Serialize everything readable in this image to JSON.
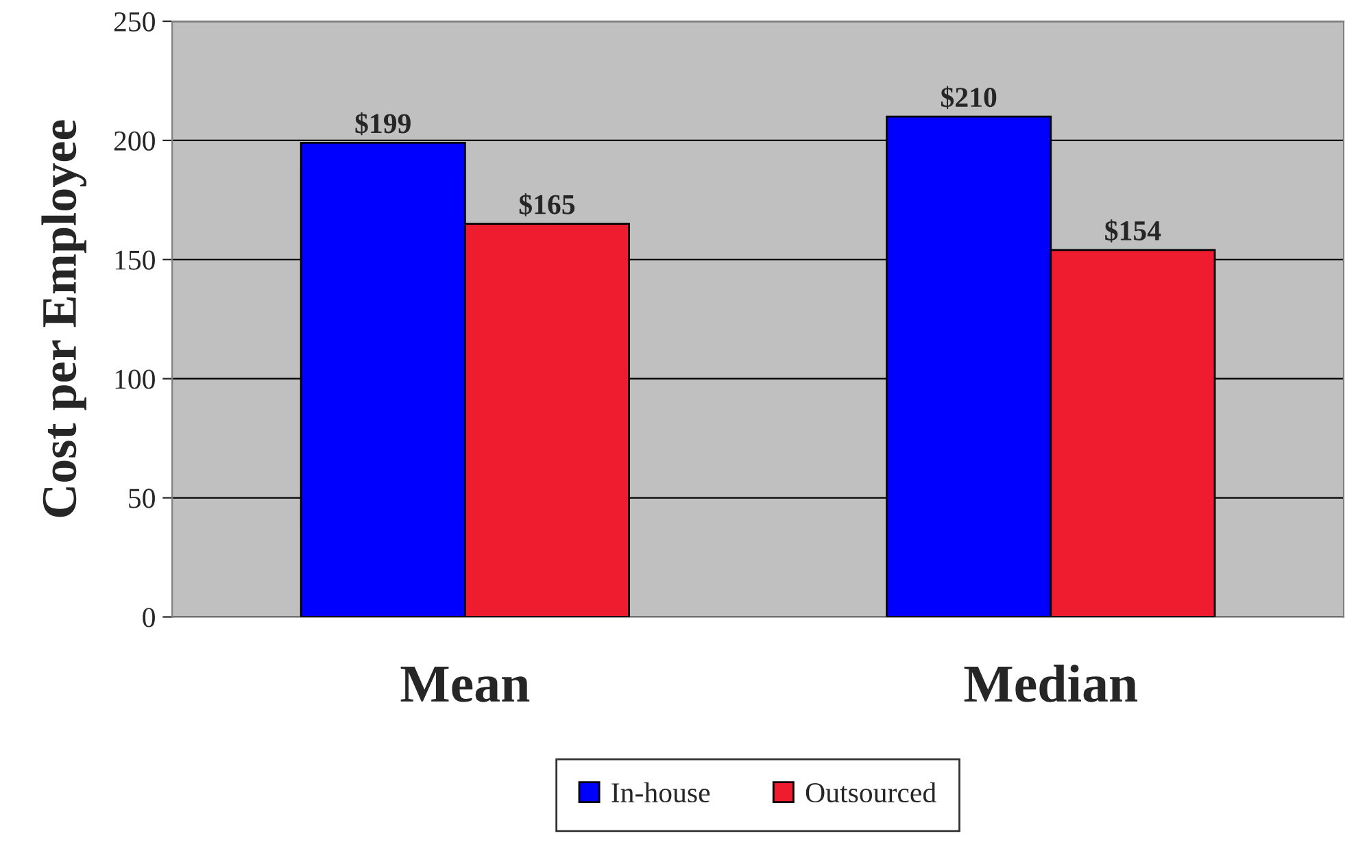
{
  "chart_data": {
    "type": "bar",
    "ylabel": "Cost per Employee",
    "categories": [
      "Mean",
      "Median"
    ],
    "series": [
      {
        "name": "In-house",
        "color": "#0000ff",
        "values": [
          199,
          210
        ],
        "value_labels": [
          "$199",
          "$210"
        ]
      },
      {
        "name": "Outsourced",
        "color": "#ee1c2e",
        "values": [
          165,
          154
        ],
        "value_labels": [
          "$165",
          "$154"
        ]
      }
    ],
    "ylim": [
      0,
      250
    ],
    "yticks": [
      0,
      50,
      100,
      150,
      200,
      250
    ],
    "grid": "y",
    "legend": "bottom"
  }
}
